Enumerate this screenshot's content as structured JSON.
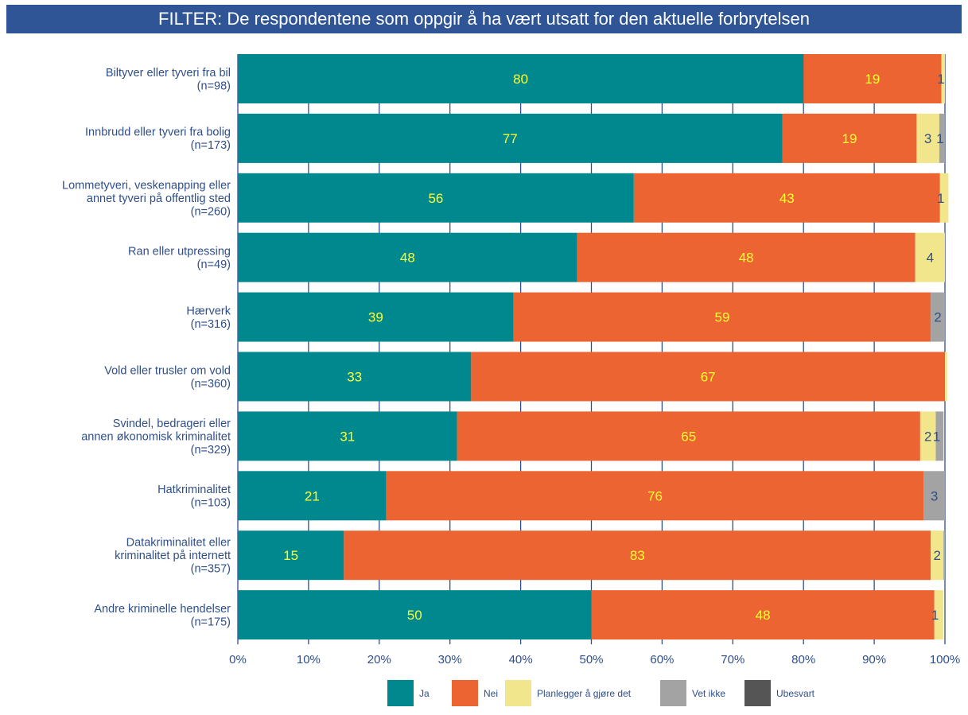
{
  "header": {
    "filter_text": "FILTER: De respondentene som oppgir å ha vært utsatt for den aktuelle forbrytelsen"
  },
  "chart_data": {
    "type": "bar",
    "orientation": "horizontal",
    "stacked": true,
    "xlim": [
      0,
      100
    ],
    "x_ticks": [
      "0%",
      "10%",
      "20%",
      "30%",
      "40%",
      "50%",
      "60%",
      "70%",
      "80%",
      "90%",
      "100%"
    ],
    "categories": [
      [
        "Biltyver eller tyveri fra bil",
        "(n=98)"
      ],
      [
        "Innbrudd eller tyveri fra bolig",
        "(n=173)"
      ],
      [
        "Lommetyveri, veskenapping eller",
        "annet tyveri på offentlig sted",
        "(n=260)"
      ],
      [
        "Ran eller utpressing",
        "(n=49)"
      ],
      [
        "Hærverk",
        "(n=316)"
      ],
      [
        "Vold eller trusler om vold",
        "(n=360)"
      ],
      [
        "Svindel, bedrageri eller",
        "annen økonomisk kriminalitet",
        "(n=329)"
      ],
      [
        "Hatkriminalitet",
        "(n=103)"
      ],
      [
        "Datakriminalitet eller",
        "kriminalitet på internett",
        "(n=357)"
      ],
      [
        "Andre kriminelle hendelser",
        "(n=175)"
      ]
    ],
    "series": [
      {
        "name": "Ja",
        "color": "#00888f",
        "label_color": "#ffff33",
        "values": [
          80,
          77,
          56,
          48,
          39,
          33,
          31,
          21,
          15,
          50
        ],
        "labels": [
          "80",
          "77",
          "56",
          "48",
          "39",
          "33",
          "31",
          "21",
          "15",
          "50"
        ]
      },
      {
        "name": "Nei",
        "color": "#ec6431",
        "label_color": "#ffff33",
        "values": [
          19.5,
          19,
          43.3,
          47.8,
          59,
          67,
          65.5,
          76,
          83,
          48.5
        ],
        "labels": [
          "19",
          "19",
          "43",
          "48",
          "59",
          "67",
          "65",
          "76",
          "83",
          "48"
        ]
      },
      {
        "name": "Planlegger å gjøre det",
        "color": "#f2e68c",
        "label_color": "#2f4f8a",
        "values": [
          0.5,
          3.2,
          1.2,
          4.2,
          0,
          0.3,
          2.2,
          0,
          1.8,
          1.3
        ],
        "labels": [
          "1",
          "3",
          "1",
          "4",
          "",
          "",
          "2",
          "",
          "2",
          "1"
        ]
      },
      {
        "name": "Vet ikke",
        "color": "#a3a3a3",
        "label_color": "#2f4f8a",
        "values": [
          0,
          0.8,
          0,
          0,
          2,
          0,
          1.1,
          3,
          0.2,
          0
        ],
        "labels": [
          "",
          "1",
          "",
          "",
          "2",
          "",
          "1",
          "3",
          "",
          ""
        ]
      },
      {
        "name": "Ubesvart",
        "color": "#555555",
        "label_color": "#2f4f8a",
        "values": [
          0,
          0,
          0,
          0,
          0,
          0,
          0,
          0,
          0,
          0
        ],
        "labels": [
          "",
          "",
          "",
          "",
          "",
          "",
          "",
          "",
          "",
          ""
        ]
      }
    ],
    "grid": true,
    "legend": "bottom"
  }
}
